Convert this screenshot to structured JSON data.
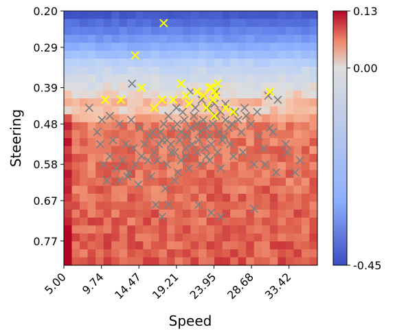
{
  "chart_data": {
    "type": "heatmap",
    "title": "",
    "xlabel": "Speed",
    "ylabel": "Steering",
    "x_tick_labels": [
      "5.00",
      "9.74",
      "14.47",
      "19.21",
      "23.95",
      "28.68",
      "33.42"
    ],
    "y_tick_labels": [
      "0.20",
      "0.29",
      "0.39",
      "0.48",
      "0.58",
      "0.67",
      "0.77"
    ],
    "x_range": [
      5.0,
      37.0
    ],
    "y_range": [
      0.2,
      0.83
    ],
    "colorbar": {
      "colormap": "coolwarm",
      "min": -0.45,
      "max": 0.13,
      "tick_labels": [
        "0.13",
        "0.00",
        "-0.45"
      ],
      "tick_values": [
        0.13,
        0.0,
        -0.45
      ]
    },
    "grid": "heatmap cells 32 columns x 32 rows, values increase with steering",
    "series": [
      {
        "marker": "x",
        "color": "#808080",
        "points": [
          [
            8.2,
            0.44
          ],
          [
            9.8,
            0.47
          ],
          [
            10.8,
            0.46
          ],
          [
            12.0,
            0.48
          ],
          [
            13.5,
            0.47
          ],
          [
            14.6,
            0.49
          ],
          [
            15.8,
            0.51
          ],
          [
            17.2,
            0.5
          ],
          [
            18.0,
            0.52
          ],
          [
            18.8,
            0.49
          ],
          [
            19.3,
            0.48
          ],
          [
            19.8,
            0.5
          ],
          [
            20.2,
            0.47
          ],
          [
            20.6,
            0.51
          ],
          [
            21.0,
            0.49
          ],
          [
            21.4,
            0.46
          ],
          [
            21.8,
            0.48
          ],
          [
            22.2,
            0.5
          ],
          [
            22.6,
            0.47
          ],
          [
            23.0,
            0.49
          ],
          [
            23.4,
            0.51
          ],
          [
            23.8,
            0.48
          ],
          [
            24.2,
            0.46
          ],
          [
            24.6,
            0.5
          ],
          [
            25.0,
            0.52
          ],
          [
            25.4,
            0.47
          ],
          [
            25.8,
            0.49
          ],
          [
            26.2,
            0.48
          ],
          [
            26.6,
            0.45
          ],
          [
            27.0,
            0.47
          ],
          [
            27.4,
            0.5
          ],
          [
            28.0,
            0.46
          ],
          [
            28.6,
            0.48
          ],
          [
            29.6,
            0.51
          ],
          [
            30.2,
            0.54
          ],
          [
            31.0,
            0.49
          ],
          [
            32.0,
            0.42
          ],
          [
            18.5,
            0.53
          ],
          [
            19.0,
            0.55
          ],
          [
            19.6,
            0.52
          ],
          [
            20.4,
            0.54
          ],
          [
            21.2,
            0.53
          ],
          [
            22.0,
            0.52
          ],
          [
            22.8,
            0.54
          ],
          [
            23.6,
            0.53
          ],
          [
            24.4,
            0.55
          ],
          [
            25.2,
            0.51
          ],
          [
            26.0,
            0.53
          ],
          [
            18.2,
            0.46
          ],
          [
            19.2,
            0.44
          ],
          [
            20.0,
            0.45
          ],
          [
            20.8,
            0.43
          ],
          [
            21.6,
            0.44
          ],
          [
            22.4,
            0.42
          ],
          [
            23.2,
            0.44
          ],
          [
            24.0,
            0.43
          ],
          [
            24.8,
            0.45
          ],
          [
            17.6,
            0.48
          ],
          [
            17.0,
            0.53
          ],
          [
            16.4,
            0.55
          ],
          [
            15.6,
            0.57
          ],
          [
            14.8,
            0.56
          ],
          [
            14.0,
            0.58
          ],
          [
            13.2,
            0.6
          ],
          [
            12.4,
            0.57
          ],
          [
            11.6,
            0.59
          ],
          [
            10.8,
            0.56
          ],
          [
            10.0,
            0.58
          ],
          [
            9.6,
            0.53
          ],
          [
            9.2,
            0.5
          ],
          [
            11.2,
            0.52
          ],
          [
            12.8,
            0.53
          ],
          [
            13.8,
            0.54
          ],
          [
            15.2,
            0.53
          ],
          [
            16.8,
            0.57
          ],
          [
            18.0,
            0.58
          ],
          [
            19.4,
            0.6
          ],
          [
            20.8,
            0.59
          ],
          [
            22.2,
            0.58
          ],
          [
            23.4,
            0.57
          ],
          [
            24.8,
            0.59
          ],
          [
            26.4,
            0.56
          ],
          [
            27.6,
            0.55
          ],
          [
            29.0,
            0.58
          ],
          [
            30.4,
            0.58
          ],
          [
            31.8,
            0.6
          ],
          [
            33.2,
            0.55
          ],
          [
            34.2,
            0.6
          ],
          [
            12.0,
            0.62
          ],
          [
            13.0,
            0.61
          ],
          [
            14.4,
            0.63
          ],
          [
            16.0,
            0.61
          ],
          [
            17.8,
            0.64
          ],
          [
            19.0,
            0.62
          ],
          [
            16.6,
            0.68
          ],
          [
            17.4,
            0.71
          ],
          [
            18.2,
            0.68
          ],
          [
            22.0,
            0.68
          ],
          [
            23.6,
            0.7
          ],
          [
            24.8,
            0.71
          ],
          [
            29.0,
            0.69
          ],
          [
            10.4,
            0.62
          ],
          [
            31.4,
            0.5
          ],
          [
            33.0,
            0.53
          ],
          [
            34.8,
            0.57
          ],
          [
            21.0,
            0.4
          ],
          [
            22.6,
            0.41
          ],
          [
            24.2,
            0.4
          ],
          [
            25.4,
            0.43
          ],
          [
            27.8,
            0.44
          ],
          [
            29.4,
            0.45
          ],
          [
            20.4,
            0.56
          ],
          [
            21.8,
            0.55
          ],
          [
            23.0,
            0.56
          ],
          [
            19.8,
            0.57
          ],
          [
            18.6,
            0.55
          ],
          [
            17.4,
            0.52
          ],
          [
            16.2,
            0.5
          ],
          [
            13.6,
            0.38
          ],
          [
            30.8,
            0.41
          ]
        ]
      },
      {
        "marker": "x",
        "color": "#ffff00",
        "points": [
          [
            17.6,
            0.23
          ],
          [
            14.0,
            0.31
          ],
          [
            14.8,
            0.39
          ],
          [
            10.2,
            0.42
          ],
          [
            12.2,
            0.42
          ],
          [
            16.4,
            0.44
          ],
          [
            17.4,
            0.42
          ],
          [
            18.8,
            0.42
          ],
          [
            19.8,
            0.38
          ],
          [
            20.4,
            0.41
          ],
          [
            21.8,
            0.4
          ],
          [
            22.6,
            0.41
          ],
          [
            23.0,
            0.44
          ],
          [
            23.4,
            0.39
          ],
          [
            23.8,
            0.42
          ],
          [
            24.0,
            0.4
          ],
          [
            24.4,
            0.38
          ],
          [
            24.0,
            0.46
          ],
          [
            25.4,
            0.44
          ],
          [
            26.4,
            0.45
          ],
          [
            23.6,
            0.39
          ],
          [
            31.0,
            0.4
          ],
          [
            20.8,
            0.43
          ],
          [
            24.2,
            0.41
          ]
        ]
      }
    ]
  }
}
